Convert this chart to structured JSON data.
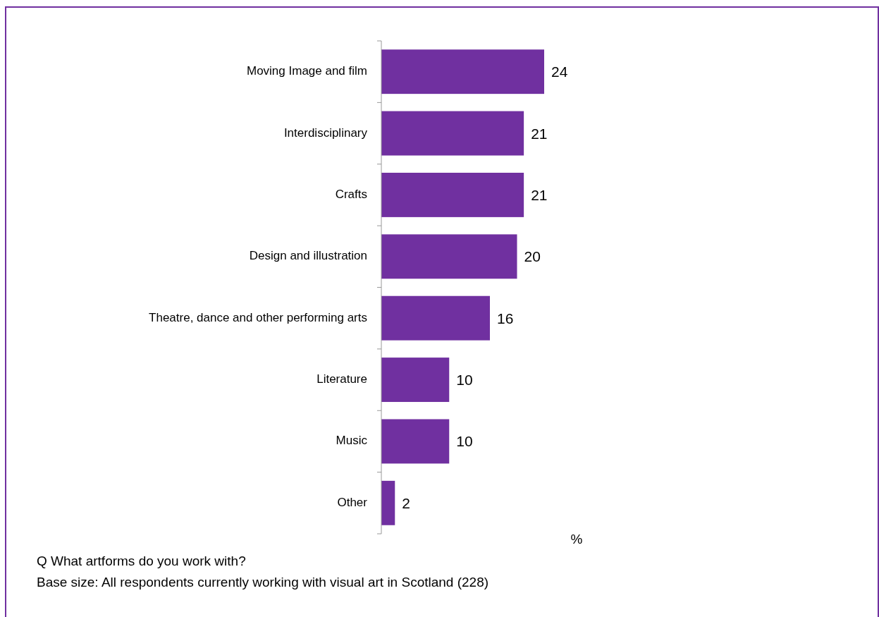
{
  "chart_data": {
    "type": "bar",
    "orientation": "horizontal",
    "categories": [
      "Moving Image and film",
      "Interdisciplinary",
      "Crafts",
      "Design and illustration",
      "Theatre, dance and other performing arts",
      "Literature",
      "Music",
      "Other"
    ],
    "values": [
      24,
      21,
      21,
      20,
      16,
      10,
      10,
      2
    ],
    "color": "#7030a0",
    "data_labels": true,
    "xlabel": "%",
    "annotations": [
      "Q  What artforms do you work with?",
      "Base size: All respondents currently working with visual art in Scotland (228)"
    ]
  }
}
